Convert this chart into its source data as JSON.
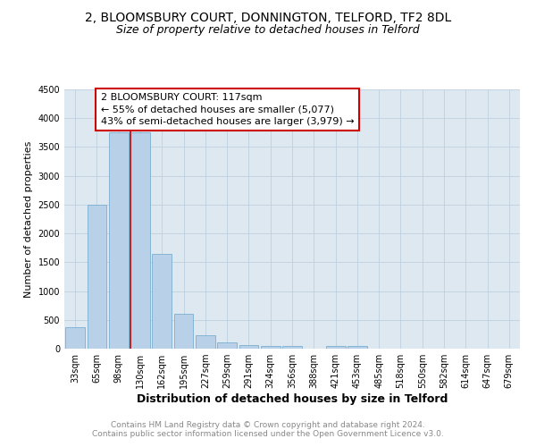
{
  "title1": "2, BLOOMSBURY COURT, DONNINGTON, TELFORD, TF2 8DL",
  "title2": "Size of property relative to detached houses in Telford",
  "xlabel": "Distribution of detached houses by size in Telford",
  "ylabel": "Number of detached properties",
  "categories": [
    "33sqm",
    "65sqm",
    "98sqm",
    "130sqm",
    "162sqm",
    "195sqm",
    "227sqm",
    "259sqm",
    "291sqm",
    "324sqm",
    "356sqm",
    "388sqm",
    "421sqm",
    "453sqm",
    "485sqm",
    "518sqm",
    "550sqm",
    "582sqm",
    "614sqm",
    "647sqm",
    "679sqm"
  ],
  "values": [
    375,
    2500,
    3750,
    3750,
    1650,
    600,
    240,
    110,
    60,
    50,
    50,
    0,
    50,
    50,
    0,
    0,
    0,
    0,
    0,
    0,
    0
  ],
  "bar_color": "#b8d0e8",
  "bar_edge_color": "#7aaed0",
  "highlight_line_index": 3,
  "highlight_line_color": "#cc0000",
  "ylim": [
    0,
    4500
  ],
  "yticks": [
    0,
    500,
    1000,
    1500,
    2000,
    2500,
    3000,
    3500,
    4000,
    4500
  ],
  "annotation_text": "2 BLOOMSBURY COURT: 117sqm\n← 55% of detached houses are smaller (5,077)\n43% of semi-detached houses are larger (3,979) →",
  "annotation_box_color": "#ffffff",
  "annotation_border_color": "#cc0000",
  "footer_line1": "Contains HM Land Registry data © Crown copyright and database right 2024.",
  "footer_line2": "Contains public sector information licensed under the Open Government Licence v3.0.",
  "background_color": "#ffffff",
  "plot_bg_color": "#dde8f0",
  "grid_color": "#c0d0e0",
  "title1_fontsize": 10,
  "title2_fontsize": 9,
  "xlabel_fontsize": 9,
  "ylabel_fontsize": 8,
  "tick_fontsize": 7,
  "footer_fontsize": 6.5,
  "annotation_fontsize": 8
}
